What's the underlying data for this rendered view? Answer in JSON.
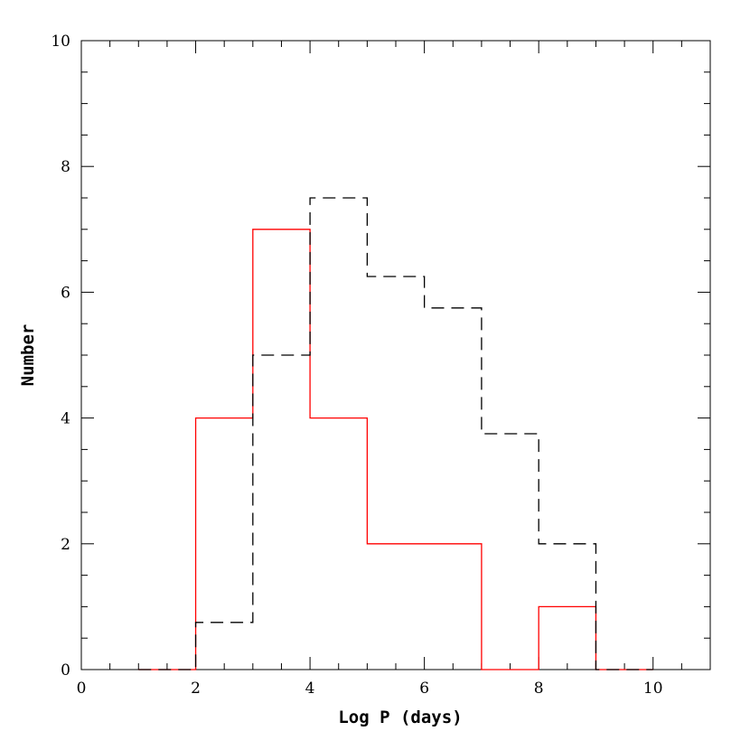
{
  "chart_data": {
    "type": "histogram",
    "xlabel": "Log P (days)",
    "ylabel": "Number",
    "xlim": [
      0,
      11
    ],
    "ylim": [
      0,
      10
    ],
    "xticks": [
      0,
      2,
      4,
      6,
      8,
      10
    ],
    "yticks": [
      0,
      2,
      4,
      6,
      8,
      10
    ],
    "grid": false,
    "bin_edges": [
      1,
      2,
      3,
      4,
      5,
      6,
      7,
      8,
      9,
      10
    ],
    "series": [
      {
        "style": "solid",
        "color": "#ff0000",
        "values": [
          0,
          4,
          7,
          4,
          2,
          2,
          0,
          1,
          0
        ]
      },
      {
        "style": "dashed",
        "color": "#000000",
        "values": [
          0,
          0.75,
          5,
          7.5,
          6.25,
          5.75,
          3.75,
          2,
          0
        ]
      }
    ]
  }
}
